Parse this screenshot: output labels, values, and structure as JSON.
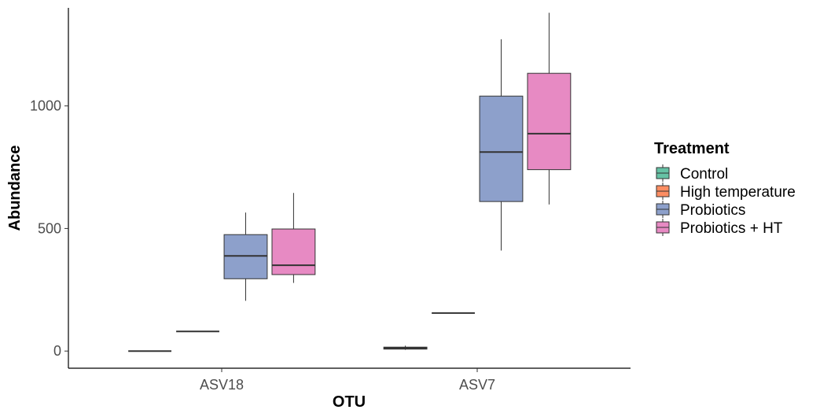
{
  "chart_data": {
    "type": "boxplot",
    "xlabel": "OTU",
    "ylabel": "Abundance",
    "categories": [
      "ASV18",
      "ASV7"
    ],
    "y_ticks": [
      0,
      500,
      1000
    ],
    "ylim": [
      -70,
      1400
    ],
    "legend": {
      "title": "Treatment",
      "position": "right",
      "entries": [
        "Control",
        "High temperature",
        "Probiotics",
        "Probiotics + HT"
      ]
    },
    "colors": {
      "Control": "#66c2a5",
      "High temperature": "#fc8d62",
      "Probiotics": "#8da0cb",
      "Probiotics + HT": "#e78ac3"
    },
    "series": [
      {
        "name": "Control",
        "boxes": [
          {
            "category": "ASV18",
            "min": 0,
            "q1": 0,
            "median": 0,
            "q3": 0,
            "max": 0
          },
          {
            "category": "ASV7",
            "min": 5,
            "q1": 8,
            "median": 12,
            "q3": 16,
            "max": 22
          }
        ]
      },
      {
        "name": "High temperature",
        "boxes": [
          {
            "category": "ASV18",
            "min": 80,
            "q1": 80,
            "median": 80,
            "q3": 80,
            "max": 80
          },
          {
            "category": "ASV7",
            "min": 155,
            "q1": 155,
            "median": 155,
            "q3": 155,
            "max": 155
          }
        ]
      },
      {
        "name": "Probiotics",
        "boxes": [
          {
            "category": "ASV18",
            "min": 205,
            "q1": 295,
            "median": 388,
            "q3": 475,
            "max": 565
          },
          {
            "category": "ASV7",
            "min": 410,
            "q1": 610,
            "median": 812,
            "q3": 1040,
            "max": 1272
          }
        ]
      },
      {
        "name": "Probiotics + HT",
        "boxes": [
          {
            "category": "ASV18",
            "min": 278,
            "q1": 312,
            "median": 350,
            "q3": 498,
            "max": 645
          },
          {
            "category": "ASV7",
            "min": 598,
            "q1": 740,
            "median": 887,
            "q3": 1133,
            "max": 1380
          }
        ]
      }
    ]
  }
}
